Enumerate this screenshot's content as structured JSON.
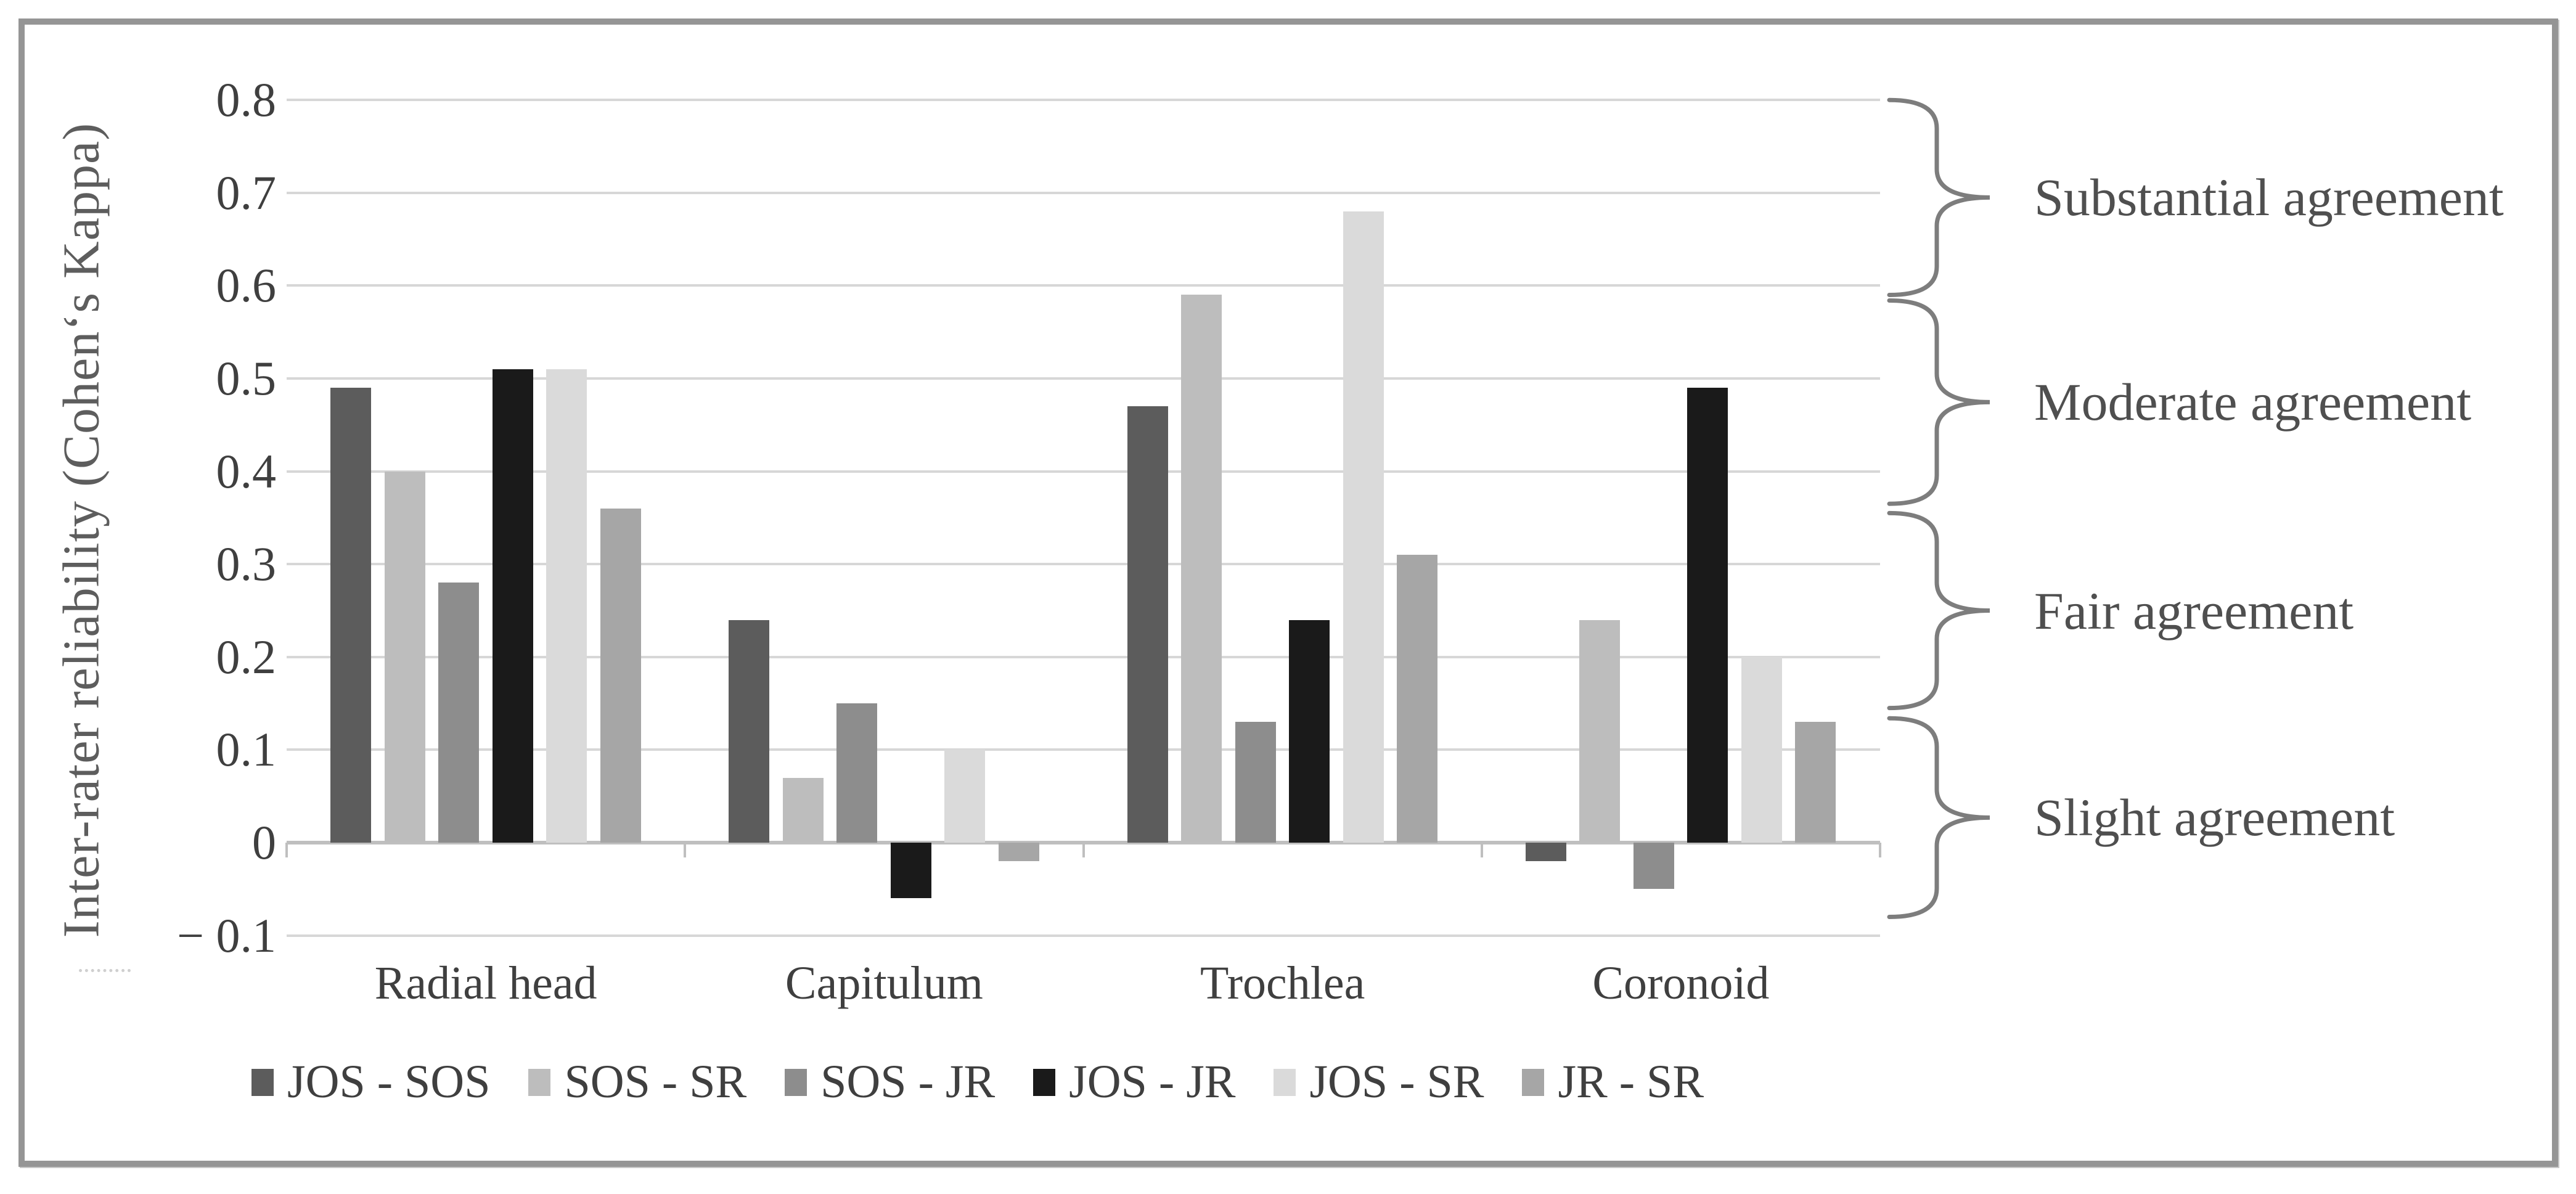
{
  "figure": {
    "background": "#ffffff",
    "border_color": "#959595"
  },
  "chart_data": {
    "type": "bar",
    "title": "",
    "xlabel": "",
    "ylabel": "Inter-rater reliability (Cohen‘s Kappa)",
    "ylim": [
      -0.1,
      0.8
    ],
    "grid": true,
    "legend_position": "bottom",
    "categories": [
      "Radial head",
      "Capitulum",
      "Trochlea",
      "Coronoid"
    ],
    "series": [
      {
        "name": "JOS - SOS",
        "color": "#5c5c5c",
        "values": [
          0.49,
          0.24,
          0.47,
          -0.02
        ]
      },
      {
        "name": "SOS - SR",
        "color": "#bdbdbd",
        "values": [
          0.4,
          0.07,
          0.59,
          0.24
        ]
      },
      {
        "name": "SOS - JR",
        "color": "#8d8d8d",
        "values": [
          0.28,
          0.15,
          0.13,
          -0.05
        ]
      },
      {
        "name": "JOS - JR",
        "color": "#1a1a1a",
        "values": [
          0.51,
          -0.06,
          0.24,
          0.49
        ]
      },
      {
        "name": "JOS - SR",
        "color": "#dadada",
        "values": [
          0.51,
          0.1,
          0.68,
          0.2
        ]
      },
      {
        "name": "JR - SR",
        "color": "#a6a6a6",
        "values": [
          0.36,
          -0.02,
          0.31,
          0.13
        ]
      }
    ],
    "yticks": [
      {
        "v": 0.8,
        "label": "0.8"
      },
      {
        "v": 0.7,
        "label": "0.7"
      },
      {
        "v": 0.6,
        "label": "0.6"
      },
      {
        "v": 0.5,
        "label": "0.5"
      },
      {
        "v": 0.4,
        "label": "0.4"
      },
      {
        "v": 0.3,
        "label": "0.3"
      },
      {
        "v": 0.2,
        "label": "0.2"
      },
      {
        "v": 0.1,
        "label": "0.1"
      },
      {
        "v": 0,
        "label": "0"
      },
      {
        "v": -0.1,
        "label": "− 0.1"
      }
    ],
    "annotations": [
      {
        "label": "Substantial agreement",
        "range": [
          0.59,
          0.8
        ]
      },
      {
        "label": "Moderate agreement",
        "range": [
          0.365,
          0.584
        ]
      },
      {
        "label": "Fair agreement",
        "range": [
          0.145,
          0.355
        ]
      },
      {
        "label": "Slight agreement",
        "range": [
          -0.08,
          0.134
        ]
      }
    ]
  }
}
